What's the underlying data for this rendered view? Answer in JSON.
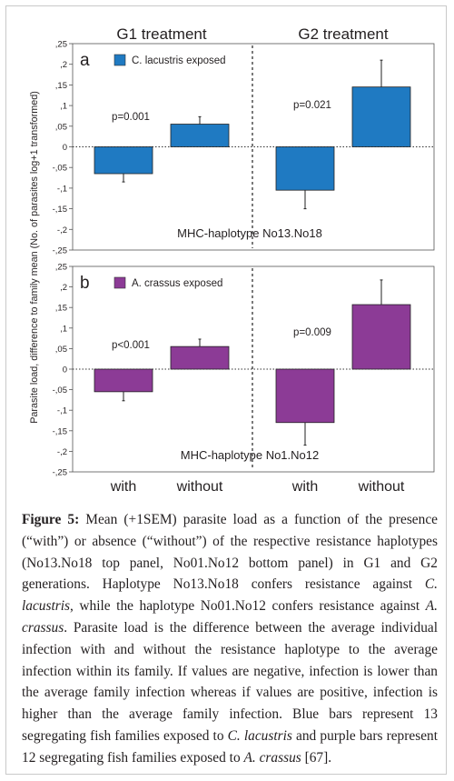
{
  "chart_data": [
    {
      "type": "bar",
      "panel": "a",
      "legend": "C. lacustris exposed",
      "color": "#1f7ac2",
      "subtitle": "MHC-haplotype No13.No18",
      "ylim": [
        -0.25,
        0.25
      ],
      "yticks": [
        ",25",
        ",2",
        ",15",
        ",1",
        ",05",
        "0",
        "-,05",
        "-,1",
        "-,15",
        "-,2",
        "-,25"
      ],
      "groups": [
        {
          "name": "G1 treatment",
          "p": "p=0.001",
          "bars": [
            {
              "category": "with",
              "value": -0.065,
              "sem": 0.02
            },
            {
              "category": "without",
              "value": 0.055,
              "sem": 0.018
            }
          ]
        },
        {
          "name": "G2 treatment",
          "p": "p=0.021",
          "bars": [
            {
              "category": "with",
              "value": -0.105,
              "sem": 0.045
            },
            {
              "category": "without",
              "value": 0.145,
              "sem": 0.065
            }
          ]
        }
      ]
    },
    {
      "type": "bar",
      "panel": "b",
      "legend": "A. crassus exposed",
      "color": "#8c3b96",
      "subtitle": "MHC-haplotype No1.No12",
      "ylim": [
        -0.25,
        0.25
      ],
      "yticks": [
        ",25",
        ",2",
        ",15",
        ",1",
        ",05",
        "0",
        "-,05",
        "-,1",
        "-,15",
        "-,2",
        "-,25"
      ],
      "groups": [
        {
          "name": "G1 treatment",
          "p": "p<0.001",
          "bars": [
            {
              "category": "with",
              "value": -0.055,
              "sem": 0.022
            },
            {
              "category": "without",
              "value": 0.055,
              "sem": 0.018
            }
          ]
        },
        {
          "name": "G2 treatment",
          "p": "p=0.009",
          "bars": [
            {
              "category": "with",
              "value": -0.13,
              "sem": 0.055
            },
            {
              "category": "without",
              "value": 0.157,
              "sem": 0.06
            }
          ]
        }
      ]
    }
  ],
  "ylabel": "Parasite load, difference to family mean (No. of parasites log+1 transformed)",
  "group_titles": [
    "G1 treatment",
    "G2 treatment"
  ],
  "x_categories": [
    "with",
    "without",
    "with",
    "without"
  ],
  "caption": {
    "label": "Figure 5:",
    "segments": [
      {
        "t": " Mean (+1SEM) parasite load as a function of the presence (“with”) or absence (“without”) of the respective resistance haplotypes (No13.No18 top panel, No01.No12 bottom panel) in G1 and G2 generations. Haplotype No13.No18 confers resistance against "
      },
      {
        "t": "C. lacustris",
        "i": true
      },
      {
        "t": ", while the haplotype No01.No12 confers resistance against "
      },
      {
        "t": "A. crassus",
        "i": true
      },
      {
        "t": ". Parasite load is the difference between the average individual infection with and without the resistance haplotype to the average infection within its family. If values are negative, infection is lower than the average family infection whereas if values are positive, infection is higher than the average family infection. Blue bars represent 13 segregating fish families exposed to "
      },
      {
        "t": "C. lacustris",
        "i": true
      },
      {
        "t": " and purple bars represent 12 segregating fish families exposed to "
      },
      {
        "t": "A. crassus",
        "i": true
      },
      {
        "t": " [67]."
      }
    ]
  }
}
